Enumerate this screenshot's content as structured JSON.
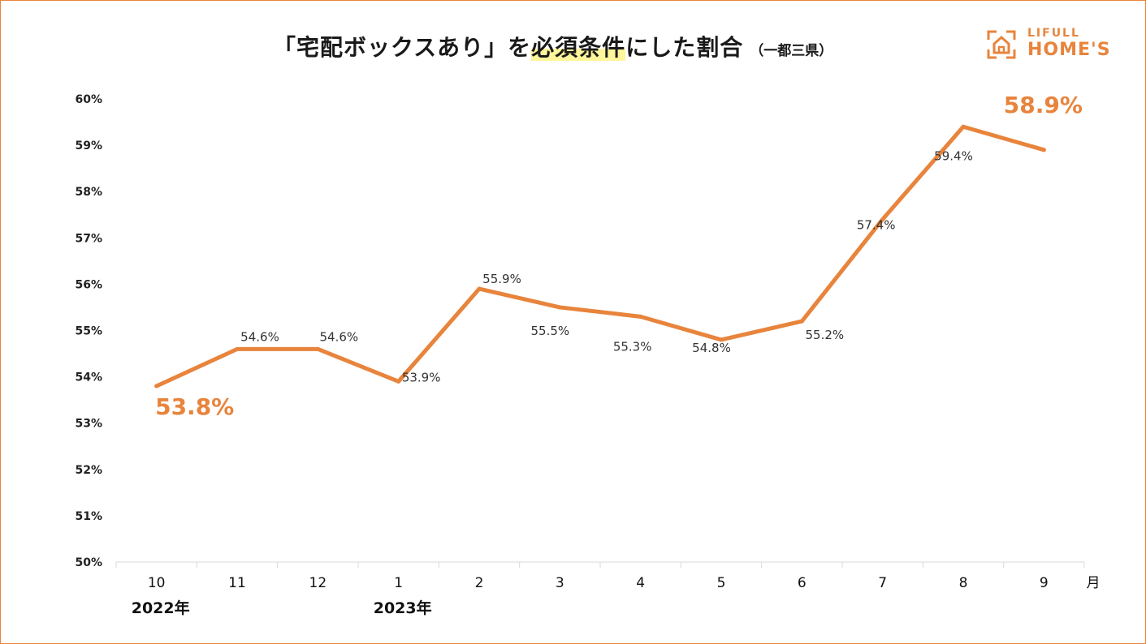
{
  "header": {
    "title_part1": "「宅配ボックスあり」を",
    "title_highlight": "必須条件",
    "title_part2": "にした割合",
    "title_sub": "（一都三県）"
  },
  "logo": {
    "line1": "LIFULL",
    "line2": "HOME'S",
    "icon": "house-icon",
    "color": "#e8843c"
  },
  "chart_data": {
    "type": "line",
    "categories": [
      "10",
      "11",
      "12",
      "1",
      "2",
      "3",
      "4",
      "5",
      "6",
      "7",
      "8",
      "9"
    ],
    "year_labels": [
      {
        "index": 0,
        "label": "2022年"
      },
      {
        "index": 3,
        "label": "2023年"
      }
    ],
    "x_unit": "月",
    "series": [
      {
        "values": [
          53.8,
          54.6,
          54.6,
          53.9,
          55.9,
          55.5,
          55.3,
          54.8,
          55.2,
          57.4,
          59.4,
          58.9
        ],
        "color": "#e8843c",
        "data_labels": [
          "53.8%",
          "54.6%",
          "54.6%",
          "53.9%",
          "55.9%",
          "55.5%",
          "55.3%",
          "54.8%",
          "55.2%",
          "57.4%",
          "59.4%",
          "58.9%"
        ]
      }
    ],
    "emphasized_labels": [
      0,
      11
    ],
    "yticks": [
      "50%",
      "51%",
      "52%",
      "53%",
      "54%",
      "55%",
      "56%",
      "57%",
      "58%",
      "59%",
      "60%"
    ],
    "ylim": [
      50,
      60
    ],
    "grid": false,
    "legend": "none"
  }
}
